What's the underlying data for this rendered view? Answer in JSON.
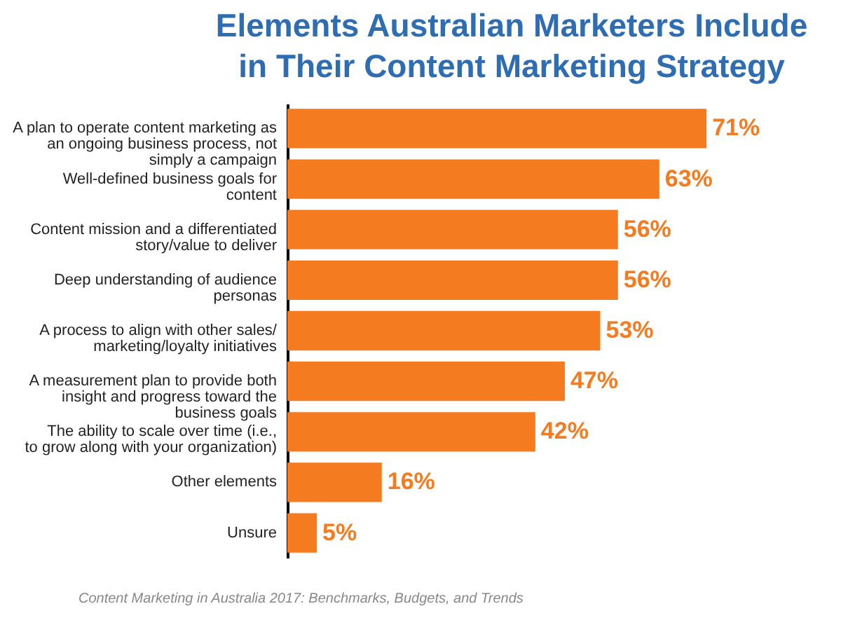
{
  "chart_data": {
    "type": "bar",
    "orientation": "horizontal",
    "title": "Elements Australian Marketers Include in Their Content Marketing Strategy",
    "categories": [
      "A plan to operate content marketing as an ongoing business process, not simply a campaign",
      "Well-defined business goals for content",
      "Content mission and a differentiated story/value to deliver",
      "Deep understanding of audience personas",
      "A process to align with other sales/ marketing/loyalty initiatives",
      "A measurement plan to provide both insight and progress toward the business goals",
      "The ability to scale over time (i.e., to grow along with your organization)",
      "Other elements",
      "Unsure"
    ],
    "values": [
      71,
      63,
      56,
      56,
      53,
      47,
      42,
      16,
      5
    ],
    "value_labels": [
      "71%",
      "63%",
      "56%",
      "56%",
      "53%",
      "47%",
      "42%",
      "16%",
      "5%"
    ],
    "color": "#f47b20",
    "annotations": [
      "Content Marketing in Australia 2017: Benchmarks, Budgets, and Trends"
    ]
  }
}
